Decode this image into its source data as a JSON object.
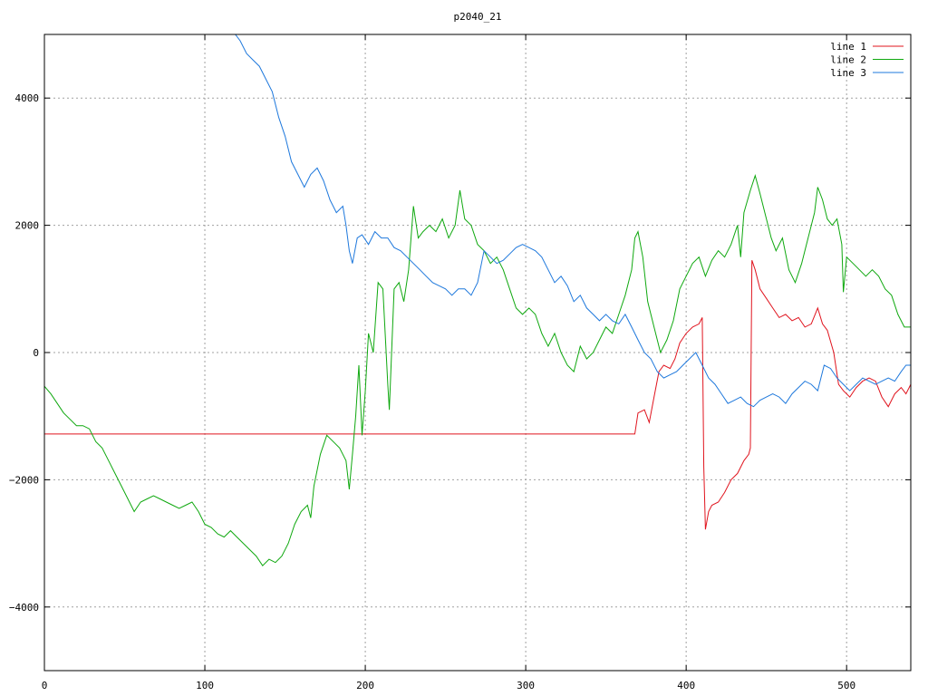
{
  "chart_data": {
    "type": "line",
    "title": "p2040_21",
    "xlabel": "",
    "ylabel": "",
    "xlim": [
      0,
      540
    ],
    "ylim": [
      -5000,
      5000
    ],
    "x_ticks": [
      0,
      100,
      200,
      300,
      400,
      500
    ],
    "y_ticks": [
      -4000,
      -2000,
      0,
      2000,
      4000
    ],
    "grid": true,
    "legend_position": "top-right",
    "series": [
      {
        "name": "line 1",
        "color": "#e0141e",
        "points": [
          [
            0,
            -1280
          ],
          [
            100,
            -1280
          ],
          [
            200,
            -1280
          ],
          [
            300,
            -1280
          ],
          [
            368,
            -1280
          ],
          [
            370,
            -950
          ],
          [
            374,
            -900
          ],
          [
            377,
            -1100
          ],
          [
            380,
            -700
          ],
          [
            383,
            -300
          ],
          [
            386,
            -200
          ],
          [
            390,
            -250
          ],
          [
            393,
            -100
          ],
          [
            396,
            150
          ],
          [
            400,
            300
          ],
          [
            404,
            400
          ],
          [
            408,
            450
          ],
          [
            410,
            550
          ],
          [
            411,
            -1800
          ],
          [
            412,
            -2780
          ],
          [
            414,
            -2500
          ],
          [
            416,
            -2400
          ],
          [
            420,
            -2350
          ],
          [
            424,
            -2200
          ],
          [
            428,
            -2000
          ],
          [
            432,
            -1900
          ],
          [
            436,
            -1700
          ],
          [
            439,
            -1600
          ],
          [
            440,
            -1500
          ],
          [
            441,
            1450
          ],
          [
            443,
            1300
          ],
          [
            446,
            1000
          ],
          [
            450,
            850
          ],
          [
            454,
            700
          ],
          [
            458,
            550
          ],
          [
            462,
            600
          ],
          [
            466,
            500
          ],
          [
            470,
            550
          ],
          [
            474,
            400
          ],
          [
            478,
            450
          ],
          [
            482,
            700
          ],
          [
            485,
            450
          ],
          [
            488,
            350
          ],
          [
            492,
            0
          ],
          [
            495,
            -500
          ],
          [
            498,
            -600
          ],
          [
            502,
            -700
          ],
          [
            506,
            -550
          ],
          [
            510,
            -450
          ],
          [
            514,
            -400
          ],
          [
            518,
            -450
          ],
          [
            522,
            -700
          ],
          [
            526,
            -850
          ],
          [
            530,
            -650
          ],
          [
            534,
            -550
          ],
          [
            537,
            -650
          ],
          [
            540,
            -500
          ]
        ]
      },
      {
        "name": "line 2",
        "color": "#0fa80f",
        "points": [
          [
            0,
            -530
          ],
          [
            4,
            -650
          ],
          [
            8,
            -800
          ],
          [
            12,
            -950
          ],
          [
            16,
            -1050
          ],
          [
            20,
            -1150
          ],
          [
            24,
            -1150
          ],
          [
            28,
            -1200
          ],
          [
            32,
            -1400
          ],
          [
            36,
            -1500
          ],
          [
            40,
            -1700
          ],
          [
            44,
            -1900
          ],
          [
            48,
            -2100
          ],
          [
            52,
            -2300
          ],
          [
            56,
            -2500
          ],
          [
            60,
            -2350
          ],
          [
            64,
            -2300
          ],
          [
            68,
            -2250
          ],
          [
            72,
            -2300
          ],
          [
            76,
            -2350
          ],
          [
            80,
            -2400
          ],
          [
            84,
            -2450
          ],
          [
            88,
            -2400
          ],
          [
            92,
            -2350
          ],
          [
            96,
            -2500
          ],
          [
            100,
            -2700
          ],
          [
            104,
            -2750
          ],
          [
            108,
            -2850
          ],
          [
            112,
            -2900
          ],
          [
            116,
            -2800
          ],
          [
            120,
            -2900
          ],
          [
            124,
            -3000
          ],
          [
            128,
            -3100
          ],
          [
            132,
            -3200
          ],
          [
            136,
            -3350
          ],
          [
            140,
            -3250
          ],
          [
            144,
            -3300
          ],
          [
            148,
            -3200
          ],
          [
            152,
            -3000
          ],
          [
            156,
            -2700
          ],
          [
            160,
            -2500
          ],
          [
            164,
            -2400
          ],
          [
            166,
            -2600
          ],
          [
            168,
            -2100
          ],
          [
            172,
            -1600
          ],
          [
            176,
            -1300
          ],
          [
            180,
            -1400
          ],
          [
            184,
            -1500
          ],
          [
            188,
            -1700
          ],
          [
            190,
            -2150
          ],
          [
            192,
            -1600
          ],
          [
            194,
            -1000
          ],
          [
            196,
            -200
          ],
          [
            198,
            -1300
          ],
          [
            200,
            -600
          ],
          [
            202,
            300
          ],
          [
            205,
            0
          ],
          [
            208,
            1100
          ],
          [
            211,
            1000
          ],
          [
            214,
            -500
          ],
          [
            215,
            -900
          ],
          [
            218,
            1000
          ],
          [
            221,
            1100
          ],
          [
            224,
            800
          ],
          [
            227,
            1300
          ],
          [
            230,
            2300
          ],
          [
            233,
            1800
          ],
          [
            236,
            1900
          ],
          [
            240,
            2000
          ],
          [
            244,
            1900
          ],
          [
            248,
            2100
          ],
          [
            252,
            1800
          ],
          [
            256,
            2000
          ],
          [
            259,
            2550
          ],
          [
            262,
            2100
          ],
          [
            266,
            2000
          ],
          [
            270,
            1700
          ],
          [
            274,
            1600
          ],
          [
            278,
            1400
          ],
          [
            282,
            1500
          ],
          [
            286,
            1300
          ],
          [
            290,
            1000
          ],
          [
            294,
            700
          ],
          [
            298,
            600
          ],
          [
            302,
            700
          ],
          [
            306,
            600
          ],
          [
            310,
            300
          ],
          [
            314,
            100
          ],
          [
            318,
            300
          ],
          [
            322,
            0
          ],
          [
            326,
            -200
          ],
          [
            330,
            -300
          ],
          [
            334,
            100
          ],
          [
            338,
            -100
          ],
          [
            342,
            0
          ],
          [
            346,
            200
          ],
          [
            350,
            400
          ],
          [
            354,
            300
          ],
          [
            358,
            600
          ],
          [
            362,
            900
          ],
          [
            366,
            1300
          ],
          [
            368,
            1800
          ],
          [
            370,
            1900
          ],
          [
            373,
            1500
          ],
          [
            376,
            800
          ],
          [
            380,
            400
          ],
          [
            384,
            0
          ],
          [
            388,
            200
          ],
          [
            392,
            500
          ],
          [
            396,
            1000
          ],
          [
            400,
            1200
          ],
          [
            404,
            1400
          ],
          [
            408,
            1500
          ],
          [
            412,
            1200
          ],
          [
            416,
            1450
          ],
          [
            420,
            1600
          ],
          [
            424,
            1500
          ],
          [
            428,
            1700
          ],
          [
            432,
            2000
          ],
          [
            434,
            1500
          ],
          [
            436,
            2200
          ],
          [
            440,
            2550
          ],
          [
            443,
            2780
          ],
          [
            446,
            2500
          ],
          [
            450,
            2100
          ],
          [
            453,
            1800
          ],
          [
            456,
            1600
          ],
          [
            460,
            1800
          ],
          [
            464,
            1300
          ],
          [
            468,
            1100
          ],
          [
            472,
            1400
          ],
          [
            476,
            1800
          ],
          [
            480,
            2200
          ],
          [
            482,
            2600
          ],
          [
            485,
            2400
          ],
          [
            488,
            2100
          ],
          [
            491,
            2000
          ],
          [
            494,
            2100
          ],
          [
            497,
            1700
          ],
          [
            498,
            950
          ],
          [
            500,
            1500
          ],
          [
            504,
            1400
          ],
          [
            508,
            1300
          ],
          [
            512,
            1200
          ],
          [
            516,
            1300
          ],
          [
            520,
            1200
          ],
          [
            524,
            1000
          ],
          [
            528,
            900
          ],
          [
            532,
            600
          ],
          [
            536,
            400
          ],
          [
            540,
            400
          ]
        ]
      },
      {
        "name": "line 3",
        "color": "#1e78dc",
        "points": [
          [
            119,
            5000
          ],
          [
            122,
            4900
          ],
          [
            126,
            4700
          ],
          [
            130,
            4600
          ],
          [
            134,
            4500
          ],
          [
            138,
            4300
          ],
          [
            142,
            4100
          ],
          [
            146,
            3700
          ],
          [
            150,
            3400
          ],
          [
            154,
            3000
          ],
          [
            158,
            2800
          ],
          [
            162,
            2600
          ],
          [
            166,
            2800
          ],
          [
            170,
            2900
          ],
          [
            174,
            2700
          ],
          [
            178,
            2400
          ],
          [
            182,
            2200
          ],
          [
            186,
            2300
          ],
          [
            188,
            2000
          ],
          [
            190,
            1600
          ],
          [
            192,
            1400
          ],
          [
            195,
            1800
          ],
          [
            198,
            1850
          ],
          [
            202,
            1700
          ],
          [
            206,
            1900
          ],
          [
            210,
            1800
          ],
          [
            214,
            1800
          ],
          [
            218,
            1650
          ],
          [
            222,
            1600
          ],
          [
            226,
            1500
          ],
          [
            230,
            1400
          ],
          [
            234,
            1300
          ],
          [
            238,
            1200
          ],
          [
            242,
            1100
          ],
          [
            246,
            1050
          ],
          [
            250,
            1000
          ],
          [
            254,
            900
          ],
          [
            258,
            1000
          ],
          [
            262,
            1000
          ],
          [
            266,
            900
          ],
          [
            270,
            1100
          ],
          [
            274,
            1600
          ],
          [
            278,
            1500
          ],
          [
            282,
            1400
          ],
          [
            286,
            1450
          ],
          [
            290,
            1550
          ],
          [
            294,
            1650
          ],
          [
            298,
            1700
          ],
          [
            302,
            1650
          ],
          [
            306,
            1600
          ],
          [
            310,
            1500
          ],
          [
            314,
            1300
          ],
          [
            318,
            1100
          ],
          [
            322,
            1200
          ],
          [
            326,
            1050
          ],
          [
            330,
            800
          ],
          [
            334,
            900
          ],
          [
            338,
            700
          ],
          [
            342,
            600
          ],
          [
            346,
            500
          ],
          [
            350,
            600
          ],
          [
            354,
            500
          ],
          [
            358,
            450
          ],
          [
            362,
            600
          ],
          [
            366,
            400
          ],
          [
            370,
            200
          ],
          [
            374,
            0
          ],
          [
            378,
            -100
          ],
          [
            382,
            -300
          ],
          [
            386,
            -400
          ],
          [
            390,
            -350
          ],
          [
            394,
            -300
          ],
          [
            398,
            -200
          ],
          [
            402,
            -100
          ],
          [
            406,
            0
          ],
          [
            410,
            -200
          ],
          [
            414,
            -400
          ],
          [
            418,
            -500
          ],
          [
            422,
            -650
          ],
          [
            426,
            -800
          ],
          [
            430,
            -750
          ],
          [
            434,
            -700
          ],
          [
            438,
            -800
          ],
          [
            442,
            -850
          ],
          [
            446,
            -750
          ],
          [
            450,
            -700
          ],
          [
            454,
            -650
          ],
          [
            458,
            -700
          ],
          [
            462,
            -800
          ],
          [
            466,
            -650
          ],
          [
            470,
            -550
          ],
          [
            474,
            -450
          ],
          [
            478,
            -500
          ],
          [
            482,
            -600
          ],
          [
            486,
            -200
          ],
          [
            490,
            -250
          ],
          [
            494,
            -400
          ],
          [
            498,
            -500
          ],
          [
            502,
            -600
          ],
          [
            506,
            -500
          ],
          [
            510,
            -400
          ],
          [
            514,
            -450
          ],
          [
            518,
            -500
          ],
          [
            522,
            -450
          ],
          [
            526,
            -400
          ],
          [
            530,
            -450
          ],
          [
            534,
            -300
          ],
          [
            537,
            -200
          ],
          [
            540,
            -200
          ]
        ]
      }
    ]
  }
}
